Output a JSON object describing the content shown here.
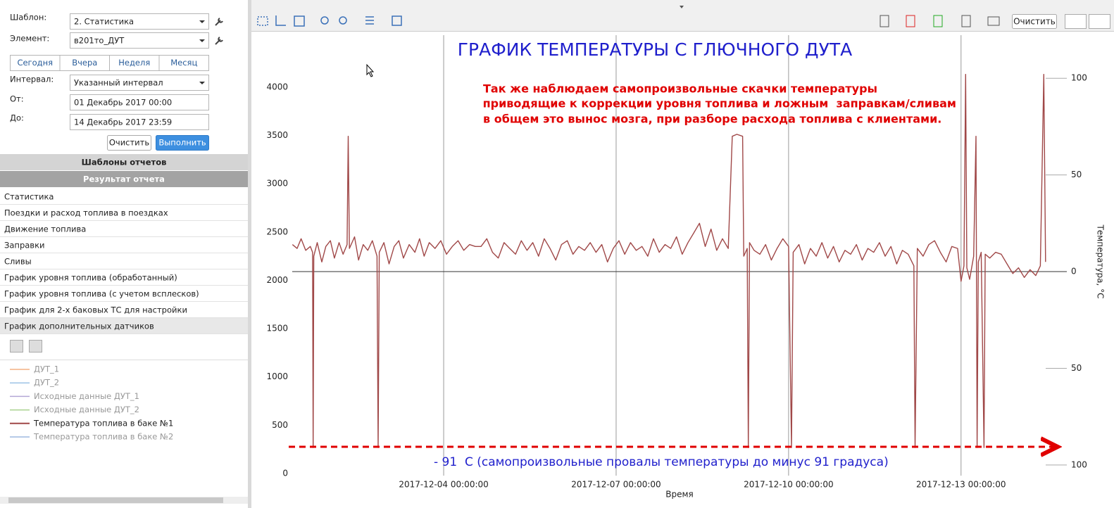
{
  "sidebar": {
    "form": {
      "template_label": "Шаблон:",
      "template_value": "2. Статистика",
      "element_label": "Элемент:",
      "element_value": "в201то_ДУТ",
      "periods": [
        "Сегодня",
        "Вчера",
        "Неделя",
        "Месяц"
      ],
      "interval_label": "Интервал:",
      "interval_value": "Указанный интервал",
      "from_label": "От:",
      "from_value": "01 Декабрь 2017 00:00",
      "to_label": "До:",
      "to_value": "14 Декабрь 2017 23:59",
      "clear": "Очистить",
      "run": "Выполнить"
    },
    "templates_header": "Шаблоны отчетов",
    "result_header": "Результат отчета",
    "reports": [
      "Статистика",
      "Поездки и расход топлива в поездках",
      "Движение топлива",
      "Заправки",
      "Сливы",
      "График уровня топлива (обработанный)",
      "График уровня топлива (с учетом всплесков)",
      "График для 2-х баковых ТС для настройки",
      "График дополнительных датчиков"
    ],
    "legend": [
      {
        "name": "ДУТ_1",
        "color": "#f4b183"
      },
      {
        "name": "ДУТ_2",
        "color": "#9dc3e6"
      },
      {
        "name": "Исходные данные ДУТ_1",
        "color": "#b4a7d6"
      },
      {
        "name": "Исходные данные ДУТ_2",
        "color": "#a9d18e"
      },
      {
        "name": "Температура топлива в баке №2",
        "color": "#9db8e0"
      }
    ]
  },
  "toolbar": {
    "clear": "Очистить"
  },
  "chart_data": {
    "type": "line",
    "title": "ГРАФИК ТЕМПЕРАТУРЫ С ГЛЮЧНОГО ДУТА",
    "annotations": [
      "Так же наблюдаем самопроизвольные скачки температуры",
      " приводящие к коррекции уровня топлива и ложным  заправкам/сливам",
      "в общем это вынос мозга, при разборе расхода топлива с клиентами.",
      "- 91  С (самопроизвольные провалы температуры до минус 91 градуса)"
    ],
    "x_label": "Время",
    "y2_label": "Температура, °С",
    "xlim": [
      1.28,
      14.84
    ],
    "xticks": [
      {
        "value": 4,
        "label": "2017-12-04 00:00:00"
      },
      {
        "value": 7,
        "label": "2017-12-07 00:00:00"
      },
      {
        "value": 10,
        "label": "2017-12-10 00:00:00"
      },
      {
        "value": 13,
        "label": "2017-12-13 00:00:00"
      }
    ],
    "ylim": [
      -22,
      4393
    ],
    "yticks": [
      0,
      500,
      1000,
      1500,
      2000,
      2500,
      3000,
      3500,
      4000
    ],
    "y2lim": [
      -105.5,
      115
    ],
    "y2ticks": [
      100,
      50,
      0,
      {
        "value": -50,
        "label": "50"
      },
      {
        "value": -100,
        "label": "100"
      }
    ],
    "x": [
      1.37,
      1.45,
      1.52,
      1.6,
      1.68,
      1.72,
      1.73,
      1.74,
      1.8,
      1.88,
      1.95,
      2.03,
      2.1,
      2.18,
      2.25,
      2.32,
      2.34,
      2.36,
      2.45,
      2.52,
      2.6,
      2.68,
      2.76,
      2.84,
      2.86,
      2.88,
      2.96,
      3.05,
      3.14,
      3.22,
      3.3,
      3.4,
      3.5,
      3.58,
      3.66,
      3.75,
      3.85,
      3.95,
      4.05,
      4.15,
      4.25,
      4.35,
      4.45,
      4.55,
      4.65,
      4.75,
      4.85,
      4.95,
      5.05,
      5.15,
      5.25,
      5.35,
      5.45,
      5.55,
      5.65,
      5.75,
      5.85,
      5.95,
      6.05,
      6.15,
      6.25,
      6.35,
      6.45,
      6.55,
      6.65,
      6.75,
      6.85,
      6.95,
      7.05,
      7.15,
      7.25,
      7.35,
      7.45,
      7.55,
      7.65,
      7.75,
      7.85,
      7.95,
      8.05,
      8.15,
      8.25,
      8.35,
      8.45,
      8.55,
      8.65,
      8.75,
      8.85,
      8.95,
      9.02,
      9.1,
      9.2,
      9.22,
      9.28,
      9.3,
      9.32,
      9.4,
      9.5,
      9.6,
      9.7,
      9.8,
      9.9,
      10.0,
      10.05,
      10.08,
      10.18,
      10.28,
      10.38,
      10.48,
      10.58,
      10.68,
      10.78,
      10.88,
      10.98,
      11.08,
      11.18,
      11.28,
      11.38,
      11.48,
      11.58,
      11.68,
      11.78,
      11.88,
      11.98,
      12.08,
      12.18,
      12.2,
      12.24,
      12.34,
      12.44,
      12.54,
      12.64,
      12.74,
      12.84,
      12.94,
      13.0,
      13.05,
      13.08,
      13.1,
      13.15,
      13.22,
      13.26,
      13.28,
      13.3,
      13.35,
      13.4,
      13.42,
      13.5,
      13.6,
      13.7,
      13.8,
      13.9,
      14.0,
      14.1,
      14.2,
      14.3,
      14.38,
      14.44,
      14.47
    ],
    "series": [
      {
        "name": "Температура топлива в баке №1",
        "color": "#a04848",
        "axis": "y2",
        "values": [
          14,
          12,
          17,
          11,
          13,
          10,
          -91,
          8,
          15,
          5,
          13,
          16,
          7,
          15,
          9,
          14,
          70,
          12,
          18,
          6,
          14,
          11,
          16,
          8,
          -91,
          10,
          15,
          4,
          13,
          16,
          7,
          14,
          10,
          17,
          8,
          15,
          12,
          16,
          9,
          13,
          16,
          11,
          14,
          13,
          13,
          17,
          10,
          7,
          15,
          12,
          9,
          16,
          11,
          15,
          8,
          17,
          12,
          6,
          14,
          16,
          9,
          13,
          11,
          15,
          10,
          14,
          5,
          12,
          16,
          9,
          15,
          11,
          13,
          8,
          17,
          10,
          14,
          12,
          18,
          9,
          15,
          20,
          25,
          13,
          22,
          11,
          17,
          12,
          70,
          71,
          70,
          8,
          12,
          -91,
          15,
          11,
          9,
          14,
          6,
          12,
          17,
          13,
          -91,
          10,
          14,
          4,
          12,
          8,
          15,
          7,
          13,
          5,
          11,
          9,
          14,
          6,
          12,
          10,
          15,
          8,
          13,
          4,
          11,
          9,
          3,
          -91,
          12,
          8,
          14,
          16,
          10,
          5,
          13,
          12,
          -5,
          3,
          102,
          2,
          -4,
          8,
          70,
          -91,
          5,
          10,
          -91,
          9,
          7,
          10,
          9,
          4,
          -1,
          2,
          -3,
          1,
          -2,
          3,
          102,
          5
        ]
      }
    ]
  }
}
